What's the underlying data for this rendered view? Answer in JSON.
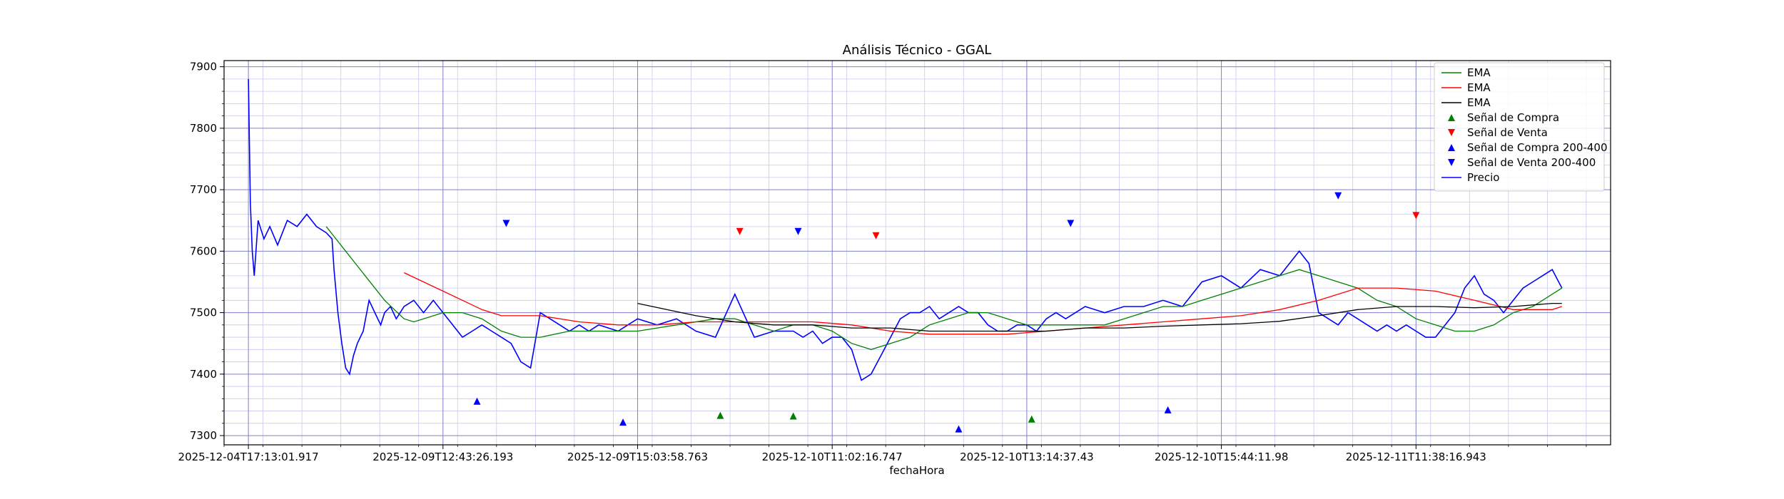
{
  "chart_data": {
    "type": "line",
    "title": "Análisis Técnico - GGAL",
    "xlabel": "fechaHora",
    "ylabel": "",
    "ylim": [
      7285,
      7910
    ],
    "xlim": [
      -25,
      1400
    ],
    "x_tick_positions": [
      0,
      200,
      400,
      600,
      800,
      1000,
      1200
    ],
    "x_tick_labels": [
      "2025-12-04T17:13:01.917",
      "2025-12-09T12:43:26.193",
      "2025-12-09T15:03:58.763",
      "2025-12-10T11:02:16.747",
      "2025-12-10T13:14:37.43",
      "2025-12-10T15:44:11.98",
      "2025-12-11T11:38:16.943"
    ],
    "y_ticks": [
      7300,
      7400,
      7500,
      7600,
      7700,
      7800,
      7900
    ],
    "grid": true,
    "legend_position": "top-right",
    "colors": {
      "ema_short": "#008000",
      "ema_mid": "#ff0000",
      "ema_long": "#000000",
      "buy": "#008000",
      "sell": "#ff0000",
      "buy_200_400": "#0000ff",
      "sell_200_400": "#0000ff",
      "price": "#0000ff",
      "grid_major": "#8080c8",
      "grid_minor": "#c8c8f0"
    },
    "legend": [
      {
        "label": "EMA",
        "kind": "line",
        "color": "#008000"
      },
      {
        "label": "EMA",
        "kind": "line",
        "color": "#ff0000"
      },
      {
        "label": "EMA",
        "kind": "line",
        "color": "#000000"
      },
      {
        "label": "Señal de Compra",
        "kind": "up",
        "color": "#008000"
      },
      {
        "label": "Señal de Venta",
        "kind": "down",
        "color": "#ff0000"
      },
      {
        "label": "Señal de Compra 200-400",
        "kind": "up",
        "color": "#0000ff"
      },
      {
        "label": "Señal de Venta 200-400",
        "kind": "down",
        "color": "#0000ff"
      },
      {
        "label": "Precio",
        "kind": "line",
        "color": "#0000ff"
      }
    ],
    "series": [
      {
        "color": "#0000ff",
        "x": [
          0,
          2,
          4,
          6,
          10,
          16,
          22,
          30,
          40,
          50,
          60,
          70,
          80,
          86,
          88,
          92,
          96,
          100,
          104,
          108,
          112,
          118,
          124,
          130,
          136,
          140,
          146,
          152,
          160,
          170,
          180,
          190,
          200,
          210,
          220,
          230,
          240,
          250,
          260,
          270,
          280,
          290,
          300,
          310,
          320,
          330,
          340,
          350,
          360,
          380,
          390,
          400,
          420,
          440,
          460,
          480,
          500,
          520,
          540,
          560,
          570,
          580,
          590,
          600,
          610,
          620,
          630,
          640,
          650,
          660,
          670,
          680,
          690,
          700,
          710,
          720,
          730,
          740,
          750,
          760,
          770,
          780,
          790,
          800,
          810,
          820,
          830,
          840,
          850,
          860,
          880,
          900,
          920,
          940,
          960,
          980,
          1000,
          1020,
          1040,
          1060,
          1070,
          1080,
          1090,
          1100,
          1110,
          1120,
          1130,
          1140,
          1150,
          1160,
          1170,
          1180,
          1190,
          1200,
          1210,
          1220,
          1230,
          1240,
          1250,
          1260,
          1270,
          1280,
          1290,
          1300,
          1310,
          1320,
          1330,
          1340,
          1350
        ],
        "y": [
          7880,
          7680,
          7600,
          7560,
          7650,
          7620,
          7640,
          7610,
          7650,
          7640,
          7660,
          7640,
          7630,
          7620,
          7570,
          7500,
          7450,
          7410,
          7400,
          7430,
          7450,
          7470,
          7520,
          7500,
          7480,
          7500,
          7510,
          7490,
          7510,
          7520,
          7500,
          7520,
          7500,
          7480,
          7460,
          7470,
          7480,
          7470,
          7460,
          7450,
          7420,
          7410,
          7500,
          7490,
          7480,
          7470,
          7480,
          7470,
          7480,
          7470,
          7480,
          7490,
          7480,
          7490,
          7470,
          7460,
          7530,
          7460,
          7470,
          7470,
          7460,
          7470,
          7450,
          7460,
          7460,
          7440,
          7390,
          7400,
          7430,
          7460,
          7490,
          7500,
          7500,
          7510,
          7490,
          7500,
          7510,
          7500,
          7500,
          7480,
          7470,
          7470,
          7480,
          7480,
          7470,
          7490,
          7500,
          7490,
          7500,
          7510,
          7500,
          7510,
          7510,
          7520,
          7510,
          7550,
          7560,
          7540,
          7570,
          7560,
          7580,
          7600,
          7580,
          7500,
          7490,
          7480,
          7500,
          7490,
          7480,
          7470,
          7480,
          7470,
          7480,
          7470,
          7460,
          7460,
          7480,
          7500,
          7540,
          7560,
          7530,
          7520,
          7500,
          7520,
          7540,
          7550,
          7560,
          7570,
          7540
        ]
      },
      {
        "color": "#008000",
        "x": [
          80,
          90,
          100,
          110,
          120,
          140,
          160,
          170,
          180,
          200,
          220,
          240,
          260,
          280,
          300,
          330,
          360,
          400,
          440,
          480,
          500,
          520,
          540,
          560,
          580,
          600,
          620,
          640,
          660,
          680,
          700,
          720,
          740,
          760,
          780,
          800,
          820,
          840,
          860,
          880,
          900,
          920,
          940,
          960,
          980,
          1000,
          1020,
          1040,
          1060,
          1080,
          1100,
          1120,
          1140,
          1160,
          1180,
          1200,
          1220,
          1240,
          1260,
          1280,
          1300,
          1320,
          1340,
          1350
        ],
        "y": [
          7640,
          7620,
          7600,
          7580,
          7560,
          7520,
          7490,
          7485,
          7490,
          7500,
          7500,
          7490,
          7470,
          7460,
          7460,
          7470,
          7470,
          7470,
          7480,
          7490,
          7490,
          7480,
          7470,
          7480,
          7480,
          7470,
          7450,
          7440,
          7450,
          7460,
          7480,
          7490,
          7500,
          7500,
          7490,
          7480,
          7480,
          7480,
          7480,
          7480,
          7490,
          7500,
          7510,
          7510,
          7520,
          7530,
          7540,
          7550,
          7560,
          7570,
          7560,
          7550,
          7540,
          7520,
          7510,
          7490,
          7480,
          7470,
          7470,
          7480,
          7500,
          7510,
          7530,
          7540
        ]
      },
      {
        "color": "#ff0000",
        "x": [
          160,
          180,
          200,
          220,
          240,
          260,
          280,
          300,
          340,
          380,
          420,
          460,
          500,
          540,
          580,
          620,
          660,
          700,
          740,
          780,
          820,
          860,
          900,
          940,
          980,
          1020,
          1060,
          1100,
          1140,
          1180,
          1220,
          1260,
          1300,
          1340,
          1350
        ],
        "y": [
          7565,
          7550,
          7535,
          7520,
          7505,
          7495,
          7495,
          7495,
          7485,
          7480,
          7480,
          7485,
          7485,
          7485,
          7485,
          7480,
          7470,
          7465,
          7465,
          7465,
          7470,
          7475,
          7480,
          7485,
          7490,
          7495,
          7505,
          7520,
          7540,
          7540,
          7535,
          7520,
          7505,
          7505,
          7510
        ]
      },
      {
        "color": "#000000",
        "x": [
          400,
          430,
          460,
          500,
          540,
          580,
          620,
          660,
          700,
          740,
          780,
          820,
          860,
          900,
          940,
          980,
          1020,
          1060,
          1100,
          1140,
          1180,
          1220,
          1260,
          1300,
          1340,
          1350
        ],
        "y": [
          7515,
          7505,
          7495,
          7485,
          7480,
          7480,
          7475,
          7475,
          7470,
          7470,
          7470,
          7470,
          7475,
          7475,
          7478,
          7480,
          7482,
          7486,
          7495,
          7505,
          7510,
          7510,
          7508,
          7510,
          7515,
          7515
        ]
      }
    ],
    "signals": {
      "buy": {
        "x": [
          485,
          560,
          805
        ],
        "y": [
          7333,
          7332,
          7327
        ]
      },
      "sell": {
        "x": [
          505,
          645,
          1200
        ],
        "y": [
          7632,
          7625,
          7658
        ]
      },
      "buy_200_400": {
        "x": [
          235,
          385,
          730,
          945
        ],
        "y": [
          7356,
          7322,
          7311,
          7342
        ]
      },
      "sell_200_400": {
        "x": [
          265,
          565,
          845,
          1120
        ],
        "y": [
          7645,
          7632,
          7645,
          7690
        ]
      }
    }
  }
}
